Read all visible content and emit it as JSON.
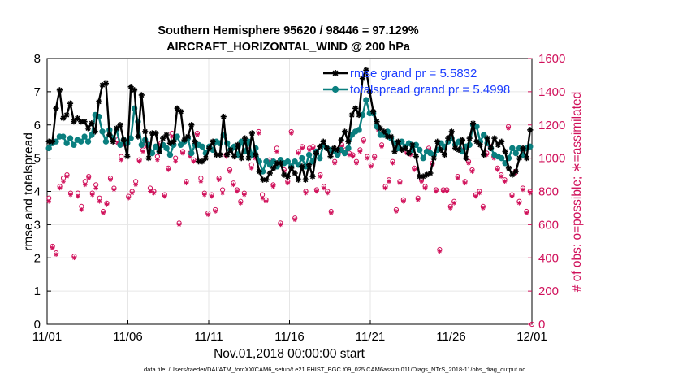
{
  "chart_data": {
    "type": "line",
    "title": "Southern Hemisphere 95620 / 98446 = 97.129%",
    "subtitle": "AIRCRAFT_HORIZONTAL_WIND @ 200 hPa",
    "xlabel": "Nov.01,2018 00:00:00 start",
    "ylabel": "rmse and totalspread",
    "y2label": "# of obs: o=possible; ∗=assimilated",
    "xlim": [
      0,
      30
    ],
    "ylim": [
      0,
      8
    ],
    "y2lim": [
      0,
      1600
    ],
    "xticks": [
      0,
      5,
      10,
      15,
      20,
      25,
      30
    ],
    "xtick_labels": [
      "11/01",
      "11/06",
      "11/11",
      "11/16",
      "11/21",
      "11/26",
      "12/01"
    ],
    "yticks": [
      0,
      1,
      2,
      3,
      4,
      5,
      6,
      7,
      8
    ],
    "y2ticks": [
      0,
      200,
      400,
      600,
      800,
      1000,
      1200,
      1400,
      1600
    ],
    "grid": true,
    "legend_position": "top-right",
    "series": [
      {
        "name": "rmse",
        "label": "rmse grand pr = 5.5832",
        "color": "#000000",
        "marker": "asterisk",
        "axis": "left",
        "values": [
          5.5,
          5.5,
          6.5,
          7.05,
          6.2,
          6.3,
          6.65,
          6.1,
          6.2,
          6.1,
          6.1,
          5.9,
          6.05,
          5.8,
          6.7,
          7.2,
          7.25,
          5.7,
          5.5,
          5.9,
          6.0,
          5.55,
          5.05,
          7.15,
          7.05,
          5.65,
          6.9,
          5.8,
          5.0,
          5.75,
          5.75,
          5.2,
          5.6,
          5.7,
          5.45,
          5.5,
          6.5,
          6.4,
          5.55,
          5.65,
          6.0,
          5.5,
          4.9,
          4.9,
          5.0,
          5.3,
          5.5,
          5.1,
          5.1,
          6.25,
          5.1,
          5.25,
          5.05,
          5.4,
          5.0,
          5.6,
          5.0,
          5.75,
          5.1,
          4.6,
          4.35,
          4.35,
          4.55,
          4.7,
          4.85,
          4.85,
          4.5,
          4.45,
          4.7,
          4.55,
          4.35,
          4.75,
          4.35,
          4.8,
          4.45,
          5.15,
          5.35,
          5.5,
          5.3,
          5.05,
          5.3,
          5.25,
          5.55,
          5.8,
          5.5,
          6.3,
          6.5,
          6.3,
          7.4,
          7.65,
          7.0,
          6.4,
          6.1,
          5.9,
          5.8,
          5.65,
          5.65,
          5.2,
          5.5,
          5.25,
          5.3,
          5.15,
          5.4,
          5.05,
          4.45,
          4.45,
          4.5,
          4.55,
          5.0,
          5.5,
          5.25,
          5.1,
          5.6,
          5.8,
          5.3,
          5.25,
          5.55,
          5.0,
          5.6,
          6.05,
          5.5,
          5.4,
          5.1,
          5.6,
          5.3,
          5.6,
          5.4,
          5.5,
          5.2,
          4.7,
          4.5,
          4.6,
          5.0,
          5.3,
          5.0,
          5.85
        ]
      },
      {
        "name": "totalspread",
        "label": "totalspread grand pr = 5.4998",
        "color": "#0a7f7f",
        "marker": "circle",
        "axis": "left",
        "values": [
          5.3,
          5.45,
          5.5,
          5.65,
          5.65,
          5.45,
          5.6,
          5.4,
          5.55,
          5.5,
          5.65,
          5.5,
          5.7,
          6.3,
          6.25,
          5.8,
          5.5,
          5.85,
          5.6,
          5.85,
          5.4,
          5.55,
          5.45,
          5.6,
          6.5,
          6.1,
          5.4,
          5.55,
          5.4,
          5.15,
          5.35,
          5.2,
          5.4,
          5.3,
          5.1,
          5.4,
          5.65,
          5.4,
          5.5,
          5.6,
          5.15,
          5.4,
          5.4,
          5.35,
          5.15,
          5.35,
          5.25,
          5.5,
          5.45,
          5.7,
          5.45,
          5.25,
          5.35,
          5.1,
          5.5,
          5.2,
          5.5,
          5.1,
          5.3,
          4.9,
          4.6,
          4.9,
          4.8,
          4.9,
          4.75,
          4.95,
          4.85,
          4.9,
          4.75,
          4.9,
          4.8,
          5.0,
          4.75,
          5.1,
          4.9,
          5.2,
          5.0,
          5.4,
          5.3,
          5.25,
          5.2,
          5.1,
          5.25,
          5.15,
          5.3,
          5.7,
          5.8,
          5.85,
          6.3,
          6.75,
          6.35,
          6.35,
          5.95,
          5.7,
          5.7,
          5.8,
          5.6,
          5.45,
          5.3,
          5.5,
          5.35,
          5.45,
          5.25,
          5.4,
          5.25,
          5.0,
          5.2,
          5.15,
          5.1,
          5.25,
          5.45,
          5.35,
          5.5,
          5.6,
          5.4,
          5.5,
          5.2,
          5.35,
          5.4,
          6.0,
          5.95,
          5.5,
          5.7,
          5.45,
          5.3,
          5.1,
          5.05,
          5.0,
          4.85,
          5.0,
          5.3,
          5.15,
          5.3,
          5.1,
          5.3,
          5.35
        ]
      }
    ],
    "obs_possible": {
      "name": "possible",
      "marker": "o",
      "color": "#d0105a",
      "axis": "right",
      "values": [
        760,
        470,
        430,
        830,
        880,
        900,
        790,
        410,
        790,
        710,
        860,
        890,
        790,
        840,
        760,
        680,
        730,
        880,
        820,
        1110,
        1010,
        1090,
        770,
        800,
        860,
        990,
        1050,
        1090,
        820,
        800,
        1010,
        1090,
        780,
        940,
        1150,
        1000,
        610,
        1040,
        860,
        1030,
        990,
        1150,
        880,
        790,
        670,
        780,
        690,
        880,
        810,
        1020,
        930,
        850,
        810,
        740,
        790,
        1050,
        960,
        1010,
        1160,
        780,
        750,
        990,
        840,
        1060,
        610,
        930,
        860,
        1160,
        640,
        1040,
        1070,
        800,
        1060,
        1070,
        810,
        900,
        830,
        800,
        680,
        980,
        1030,
        1080,
        1050,
        1030,
        1020,
        980,
        1050,
        1110,
        1010,
        960,
        1010,
        1180,
        1080,
        830,
        870,
        980,
        690,
        860,
        750,
        1040,
        1030,
        940,
        760,
        870,
        830,
        1060,
        970,
        810,
        450,
        810,
        810,
        710,
        740,
        890,
        1050,
        860,
        980,
        930,
        780,
        800,
        710,
        1030,
        1070,
        1010,
        940,
        900,
        870,
        1190,
        780,
        920,
        740,
        820,
        680,
        800
      ]
    },
    "obs_assimilated": {
      "name": "assimilated",
      "marker": "asterisk",
      "color": "#d0105a",
      "axis": "right",
      "values": [
        740,
        460,
        420,
        820,
        860,
        890,
        780,
        400,
        770,
        690,
        840,
        880,
        780,
        820,
        740,
        670,
        720,
        870,
        810,
        1090,
        990,
        1080,
        760,
        790,
        840,
        980,
        1040,
        1070,
        800,
        790,
        990,
        1080,
        770,
        930,
        1130,
        980,
        600,
        1030,
        850,
        1010,
        980,
        1140,
        860,
        780,
        660,
        770,
        680,
        870,
        790,
        1010,
        920,
        840,
        800,
        730,
        780,
        1040,
        940,
        1000,
        1150,
        760,
        740,
        980,
        830,
        1040,
        600,
        920,
        850,
        1150,
        630,
        1030,
        1060,
        790,
        1050,
        1060,
        800,
        890,
        820,
        790,
        670,
        970,
        1020,
        1070,
        1040,
        1020,
        1010,
        970,
        1040,
        1100,
        1000,
        950,
        1000,
        1170,
        1070,
        820,
        860,
        970,
        680,
        850,
        740,
        1030,
        1020,
        930,
        750,
        860,
        820,
        1050,
        960,
        800,
        440,
        800,
        800,
        700,
        730,
        880,
        1040,
        850,
        970,
        920,
        770,
        790,
        700,
        1020,
        1060,
        1000,
        930,
        890,
        860,
        1180,
        770,
        910,
        730,
        810,
        670,
        790
      ]
    }
  },
  "footer": "data file: /Users/raeder/DAI/ATM_forcXX/CAM6_setup/f.e21.FHIST_BGC.f09_025.CAM6assim.011/Diags_NTrS_2018-11/obs_diag_output.nc"
}
